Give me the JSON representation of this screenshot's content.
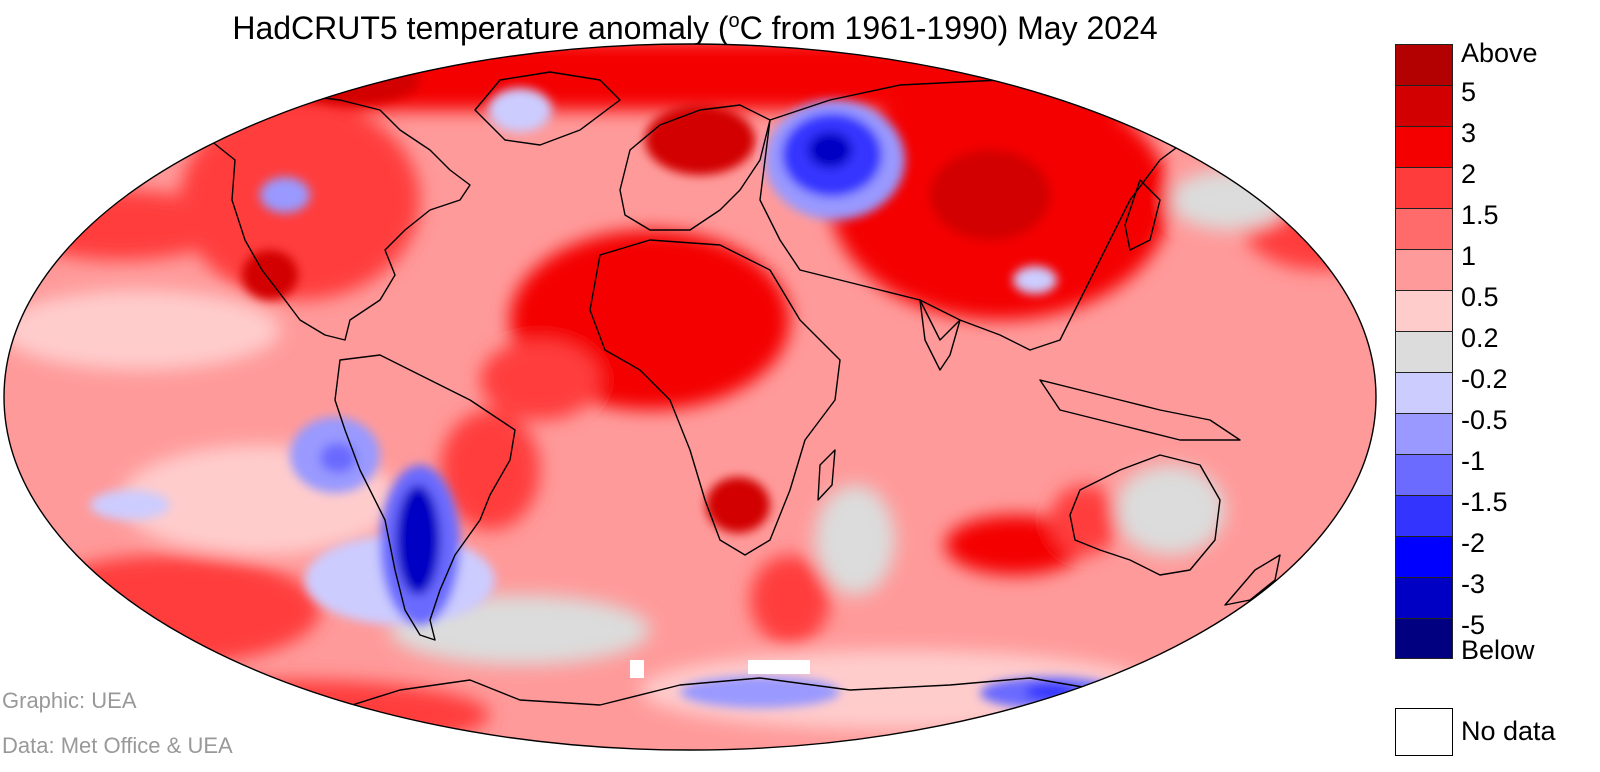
{
  "figure": {
    "title_prefix": "HadCRUT5 temperature anomaly (",
    "title_degree_sup": "o",
    "title_suffix": "C from 1961-1990) May 2024"
  },
  "legend": {
    "labels": [
      "Above",
      "5",
      "3",
      "2",
      "1.5",
      "1",
      "0.5",
      "0.2",
      "-0.2",
      "-0.5",
      "-1",
      "-1.5",
      "-2",
      "-3",
      "-5",
      "Below"
    ],
    "colors": [
      "#b30000",
      "#d20000",
      "#f40000",
      "#ff3c3c",
      "#ff6a6a",
      "#ff9a9a",
      "#ffcccc",
      "#dcdcdc",
      "#ccccff",
      "#9999ff",
      "#6b6bff",
      "#3434ff",
      "#0000ff",
      "#0000c4",
      "#000080"
    ],
    "no_data_label": "No data",
    "no_data_color": "#ffffff"
  },
  "credits": {
    "graphic": "Graphic: UEA",
    "data": "Data: Met Office & UEA"
  },
  "map_features": {
    "projection": "robinson",
    "ocean_base_color": "#ff9a9a",
    "anomaly_regions": [
      {
        "name": "arctic-russia",
        "level": "3"
      },
      {
        "name": "scandinavia",
        "level": "5"
      },
      {
        "name": "west-siberia",
        "level": "-3"
      },
      {
        "name": "greenland",
        "level": "-0.5"
      },
      {
        "name": "alaska-gulf",
        "level": "-1"
      },
      {
        "name": "central-siberia",
        "level": "5"
      },
      {
        "name": "mexico",
        "level": "3"
      },
      {
        "name": "north-africa",
        "level": "2"
      },
      {
        "name": "south-africa",
        "level": "3"
      },
      {
        "name": "chile-peru",
        "level": "-1.5"
      },
      {
        "name": "argentina",
        "level": "-5"
      },
      {
        "name": "south-pacific-cold",
        "level": "-0.5"
      },
      {
        "name": "south-atlantic-cold",
        "level": "-1"
      },
      {
        "name": "antarctica-ross",
        "level": "-1.5"
      },
      {
        "name": "antarctica-east",
        "level": "-2"
      },
      {
        "name": "indian-ocean-warm",
        "level": "2"
      },
      {
        "name": "south-pacific-warm",
        "level": "2"
      },
      {
        "name": "australia-west",
        "level": "2"
      }
    ]
  }
}
